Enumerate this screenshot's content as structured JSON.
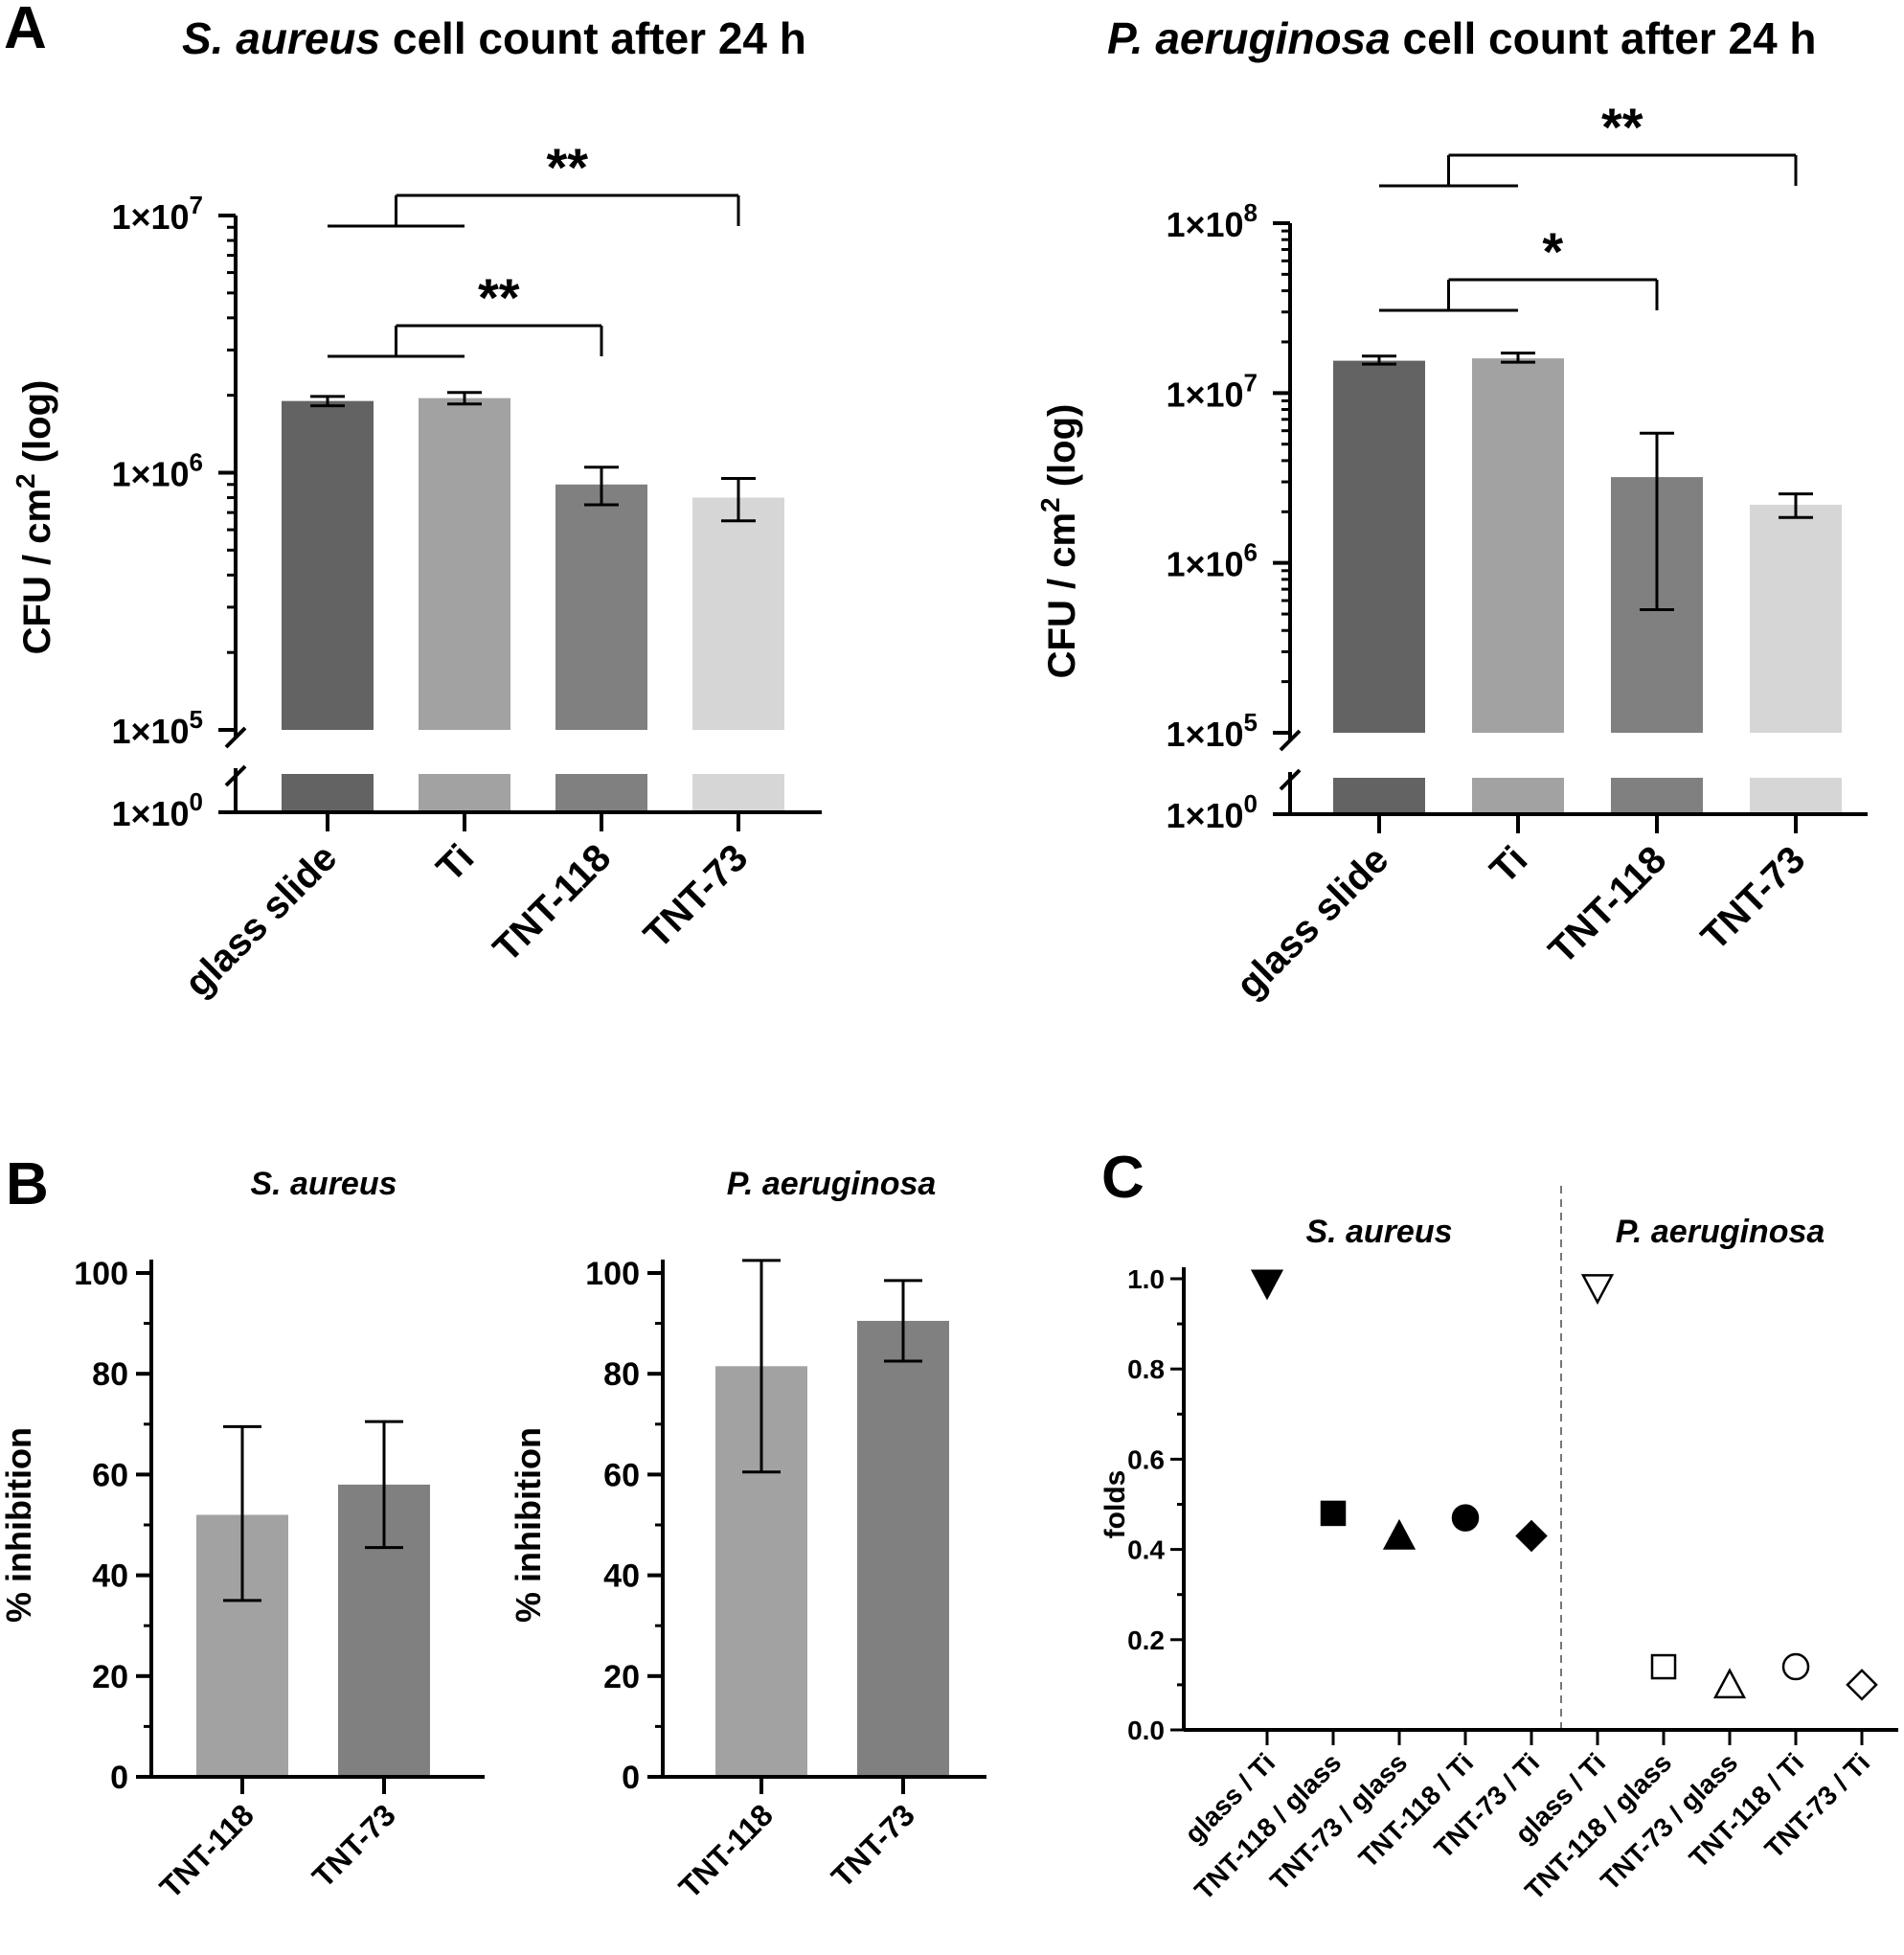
{
  "panel_labels": [
    "A",
    "B",
    "C"
  ],
  "chart_data": [
    {
      "id": "a1",
      "type": "bar",
      "scale": "log-broken",
      "title_italic": "S. aureus",
      "title_rest": " cell count after 24 h",
      "ylabel_main": "CFU / cm",
      "ylabel_sup": "2",
      "ylabel_tail": " (log)",
      "categories": [
        "glass slide",
        "Ti",
        "TNT-118",
        "TNT-73"
      ],
      "colors": [
        "#636363",
        "#a2a2a2",
        "#808080",
        "#d6d6d6"
      ],
      "values": [
        1900000,
        1950000,
        900000,
        800000
      ],
      "err_low": [
        1820000,
        1850000,
        750000,
        650000
      ],
      "err_high": [
        1980000,
        2050000,
        1050000,
        950000
      ],
      "ylim_log": [
        100000,
        10000000
      ],
      "ticks": [
        {
          "label": "1×10",
          "exp": "7"
        },
        {
          "label": "1×10",
          "exp": "6"
        },
        {
          "label": "1×10",
          "exp": "5"
        },
        {
          "label": "1×10",
          "exp": "0"
        }
      ],
      "sig": [
        {
          "stars": "**",
          "from_group": [
            0,
            1
          ],
          "to": 3
        },
        {
          "stars": "**",
          "from_group": [
            0,
            1
          ],
          "to": 2
        }
      ]
    },
    {
      "id": "a2",
      "type": "bar",
      "scale": "log-broken",
      "title_italic": "P. aeruginosa",
      "title_rest": " cell count after 24 h",
      "ylabel_main": "CFU / cm",
      "ylabel_sup": "2",
      "ylabel_tail": " (log)",
      "categories": [
        "glass slide",
        "Ti",
        "TNT-118",
        "TNT-73"
      ],
      "colors": [
        "#636363",
        "#a2a2a2",
        "#808080",
        "#d6d6d6"
      ],
      "values": [
        15500000,
        16000000,
        3200000,
        2200000
      ],
      "err_low": [
        14800000,
        15200000,
        530000,
        1850000
      ],
      "err_high": [
        16500000,
        17200000,
        5800000,
        2550000
      ],
      "ylim_log": [
        100000,
        100000000
      ],
      "ticks": [
        {
          "label": "1×10",
          "exp": "8"
        },
        {
          "label": "1×10",
          "exp": "7"
        },
        {
          "label": "1×10",
          "exp": "6"
        },
        {
          "label": "1×10",
          "exp": "5"
        },
        {
          "label": "1×10",
          "exp": "0"
        }
      ],
      "sig": [
        {
          "stars": "**",
          "from_group": [
            0,
            1
          ],
          "to": 3
        },
        {
          "stars": "*",
          "from_group": [
            0,
            1
          ],
          "to": 2
        }
      ]
    },
    {
      "id": "b1",
      "type": "bar",
      "title_italic": "S. aureus",
      "ylabel": "% inhibition",
      "categories": [
        "TNT-118",
        "TNT-73"
      ],
      "colors": [
        "#a2a2a2",
        "#808080"
      ],
      "values": [
        52,
        58
      ],
      "err_low": [
        35,
        45.5
      ],
      "err_high": [
        69.5,
        70.5
      ],
      "ylim": [
        0,
        100
      ],
      "yticks": [
        0,
        20,
        40,
        60,
        80,
        100
      ]
    },
    {
      "id": "b2",
      "type": "bar",
      "title_italic": "P. aeruginosa",
      "ylabel": "% inhibition",
      "categories": [
        "TNT-118",
        "TNT-73"
      ],
      "colors": [
        "#a2a2a2",
        "#808080"
      ],
      "values": [
        81.5,
        90.5
      ],
      "err_low": [
        60.5,
        82.5
      ],
      "err_high": [
        102.5,
        98.5
      ],
      "ylim": [
        0,
        100
      ],
      "yticks": [
        0,
        20,
        40,
        60,
        80,
        100
      ]
    },
    {
      "id": "c",
      "type": "scatter",
      "group_labels": [
        "S. aureus",
        "P. aeruginosa"
      ],
      "ylabel": "folds",
      "ylim": [
        0,
        1.0
      ],
      "yticks": [
        "0.0",
        "0.2",
        "0.4",
        "0.6",
        "0.8",
        "1.0"
      ],
      "categories": [
        "glass / Ti",
        "TNT-118 / glass",
        "TNT-73 / glass",
        "TNT-118 / Ti",
        "TNT-73 / Ti",
        "glass / Ti",
        "TNT-118 / glass",
        "TNT-73 / glass",
        "TNT-118 / Ti",
        "TNT-73 / Ti"
      ],
      "values": [
        0.99,
        0.48,
        0.43,
        0.47,
        0.43,
        0.98,
        0.14,
        0.1,
        0.14,
        0.1
      ],
      "markers": [
        "triangle-down",
        "square",
        "triangle-up",
        "circle",
        "diamond",
        "triangle-down",
        "square",
        "triangle-up",
        "circle",
        "diamond"
      ],
      "filled": [
        true,
        true,
        true,
        true,
        true,
        false,
        false,
        false,
        false,
        false
      ]
    }
  ]
}
